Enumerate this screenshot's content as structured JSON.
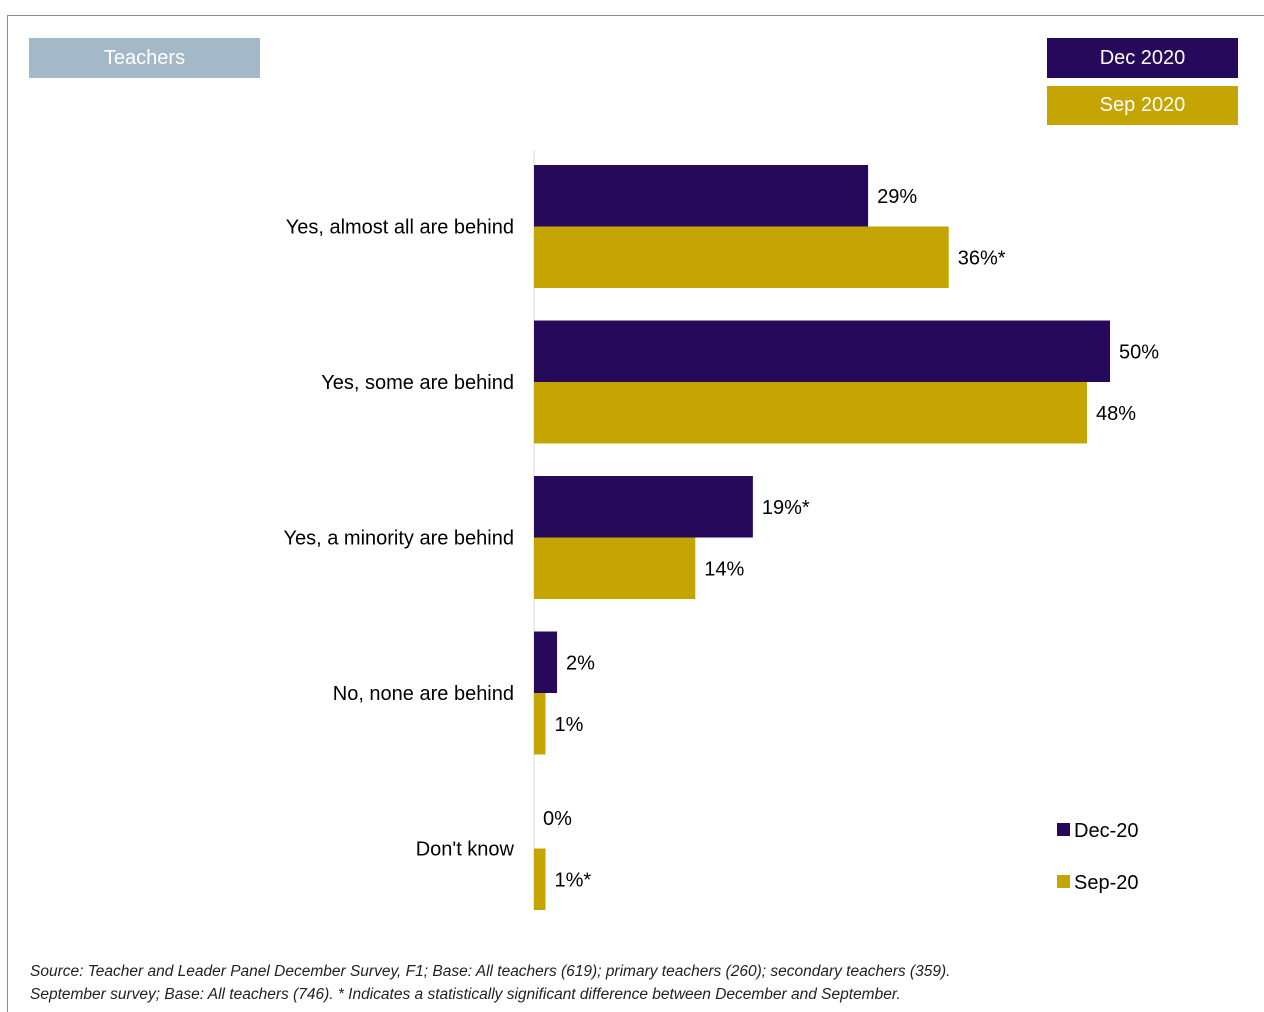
{
  "header": {
    "audience_label": "Teachers",
    "legend_boxes": [
      "Dec 2020",
      "Sep 2020"
    ]
  },
  "colors": {
    "dec": "#26095a",
    "sep": "#c5a503",
    "audience_badge": "#a4b9c8"
  },
  "chart_data": {
    "type": "bar",
    "orientation": "horizontal",
    "categories": [
      "Yes, almost all are behind",
      "Yes, some are behind",
      "Yes, a minority are behind",
      "No, none are behind",
      "Don't know"
    ],
    "series": [
      {
        "name": "Dec-20",
        "values": [
          29,
          50,
          19,
          2,
          0
        ],
        "labels": [
          "29%",
          "50%",
          "19%*",
          "2%",
          "0%"
        ]
      },
      {
        "name": "Sep-20",
        "values": [
          36,
          48,
          14,
          1,
          1
        ],
        "labels": [
          "36%*",
          "48%",
          "14%",
          "1%",
          "1%*"
        ]
      }
    ],
    "xlim": [
      0,
      50
    ],
    "grid": false,
    "legend_position": "bottom-right"
  },
  "footnote": {
    "line1": "Source: Teacher and Leader Panel December Survey, F1; Base: All teachers (619); primary teachers (260); secondary teachers (359).",
    "line2": "September survey; Base: All teachers (746). * Indicates a statistically significant difference between December and September."
  }
}
